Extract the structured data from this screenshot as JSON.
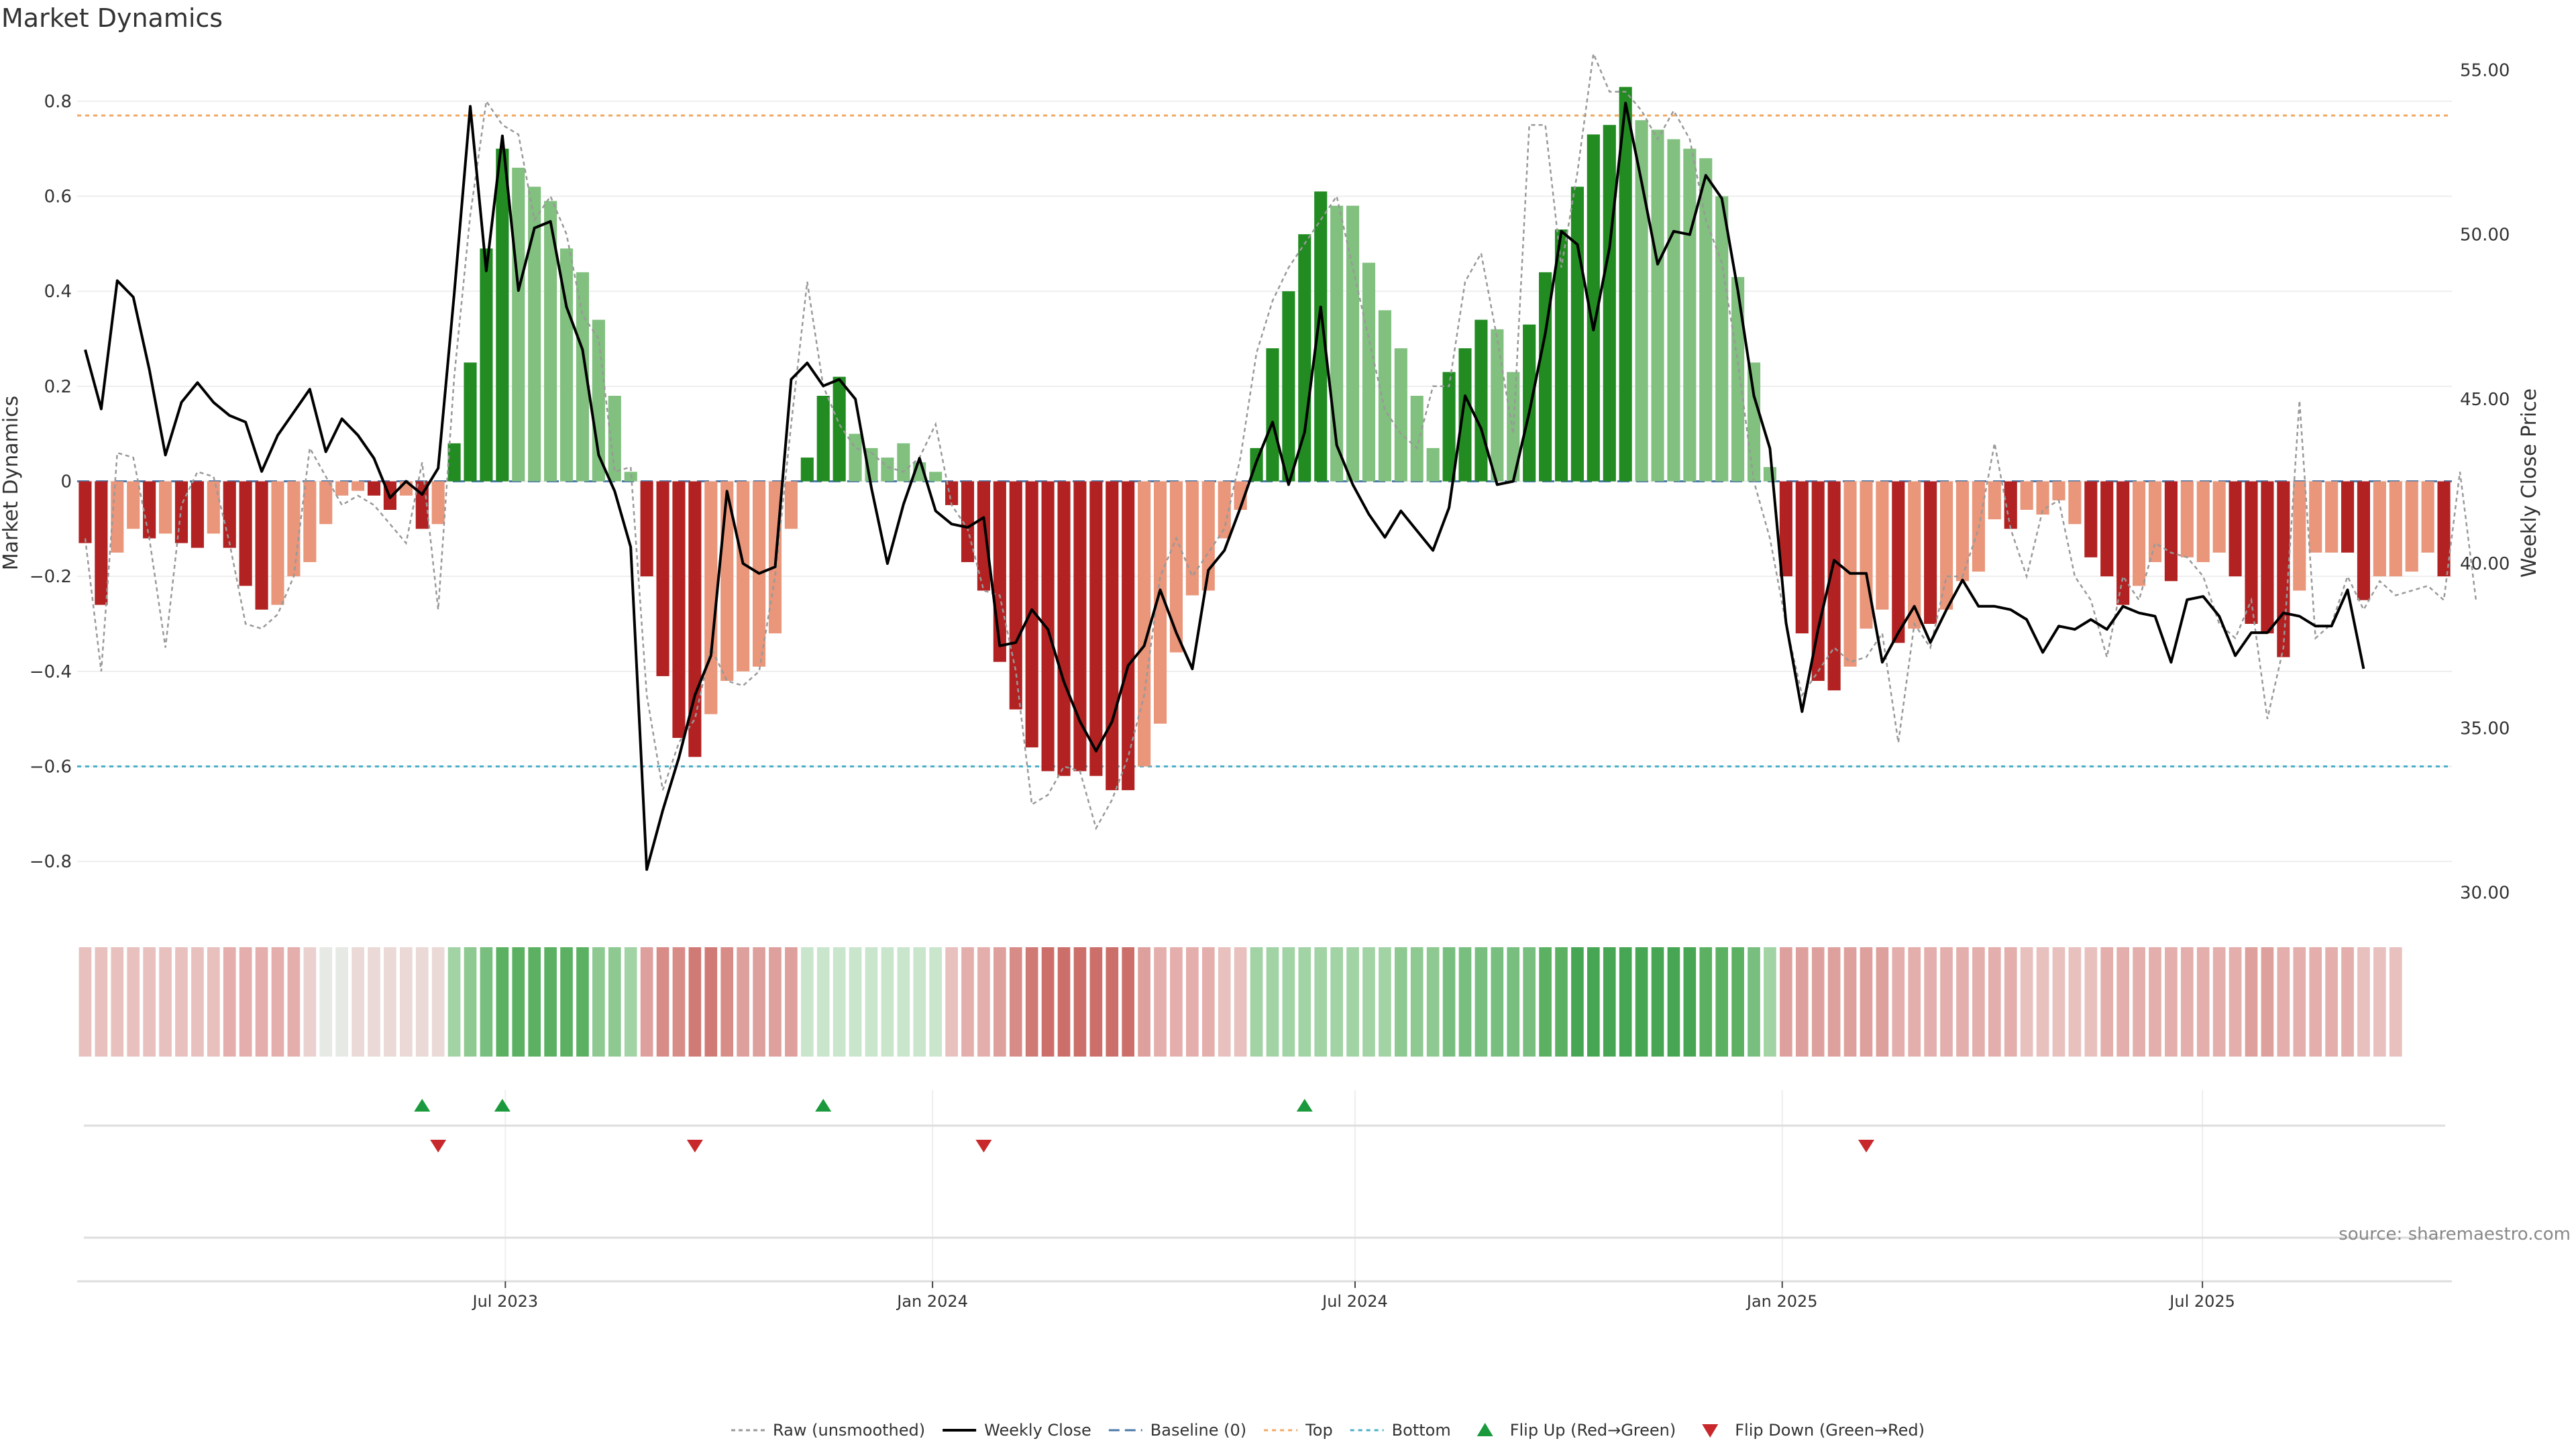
{
  "chart_data": {
    "type": "bar",
    "title": "Market Dynamics",
    "ylabel_left": "Market Dynamics",
    "ylabel_right": "Weekly Close Price",
    "ylim_left": [
      -0.9,
      0.9
    ],
    "ylim_right": [
      29.5,
      55.5
    ],
    "yticks_left": [
      0.8,
      0.6,
      0.4,
      0.2,
      0,
      -0.2,
      -0.4,
      -0.6,
      -0.8
    ],
    "yticks_left_labels": [
      "0.8",
      "0.6",
      "0.4",
      "0.2",
      "0",
      "−0.2",
      "−0.4",
      "−0.6",
      "−0.8"
    ],
    "yticks_right": [
      55,
      50,
      45,
      40,
      35,
      30
    ],
    "yticks_right_labels": [
      "55.00",
      "50.00",
      "45.00",
      "40.00",
      "35.00",
      "30.00"
    ],
    "x_start_date": "2023-01-01",
    "x_end_date": "2025-10-13",
    "x_ticks": [
      {
        "label": "Jul 2023",
        "date": "2023-07-01"
      },
      {
        "label": "Jan 2024",
        "date": "2024-01-01"
      },
      {
        "label": "Jul 2024",
        "date": "2024-07-01"
      },
      {
        "label": "Jan 2025",
        "date": "2025-01-01"
      },
      {
        "label": "Jul 2025",
        "date": "2025-07-01"
      }
    ],
    "top_level": 0.77,
    "bottom_level": -0.6,
    "baseline": 0,
    "bar_values": [
      -0.13,
      -0.26,
      -0.15,
      -0.1,
      -0.12,
      -0.11,
      -0.13,
      -0.14,
      -0.11,
      -0.14,
      -0.22,
      -0.27,
      -0.26,
      -0.2,
      -0.17,
      -0.09,
      -0.03,
      -0.02,
      -0.03,
      -0.06,
      -0.03,
      -0.1,
      -0.09,
      0.08,
      0.25,
      0.49,
      0.7,
      0.66,
      0.62,
      0.59,
      0.49,
      0.44,
      0.34,
      0.18,
      0.02,
      -0.2,
      -0.41,
      -0.54,
      -0.58,
      -0.49,
      -0.42,
      -0.4,
      -0.39,
      -0.32,
      -0.1,
      0.05,
      0.18,
      0.22,
      0.1,
      0.07,
      0.05,
      0.08,
      0.04,
      0.02,
      -0.05,
      -0.17,
      -0.23,
      -0.38,
      -0.48,
      -0.56,
      -0.61,
      -0.62,
      -0.61,
      -0.62,
      -0.65,
      -0.65,
      -0.6,
      -0.51,
      -0.36,
      -0.24,
      -0.23,
      -0.12,
      -0.06,
      0.07,
      0.28,
      0.4,
      0.52,
      0.61,
      0.58,
      0.58,
      0.46,
      0.36,
      0.28,
      0.18,
      0.07,
      0.23,
      0.28,
      0.34,
      0.32,
      0.23,
      0.33,
      0.44,
      0.53,
      0.62,
      0.73,
      0.75,
      0.83,
      0.76,
      0.74,
      0.72,
      0.7,
      0.68,
      0.6,
      0.43,
      0.25,
      0.03,
      -0.2,
      -0.32,
      -0.42,
      -0.44,
      -0.39,
      -0.31,
      -0.27,
      -0.34,
      -0.31,
      -0.3,
      -0.27,
      -0.21,
      -0.19,
      -0.08,
      -0.1,
      -0.06,
      -0.07,
      -0.04,
      -0.09,
      -0.16,
      -0.2,
      -0.26,
      -0.22,
      -0.17,
      -0.21,
      -0.16,
      -0.17,
      -0.15,
      -0.2,
      -0.3,
      -0.32,
      -0.37,
      -0.23,
      -0.15,
      -0.15,
      -0.15,
      -0.25,
      -0.2,
      -0.2,
      -0.19,
      -0.15,
      -0.2
    ],
    "bar_colors": [
      "#b22222",
      "#b22222",
      "#e9967a",
      "#e9967a",
      "#b22222",
      "#e9967a",
      "#b22222",
      "#b22222",
      "#e9967a",
      "#b22222",
      "#b22222",
      "#b22222",
      "#e9967a",
      "#e9967a",
      "#e9967a",
      "#e9967a",
      "#e9967a",
      "#e9967a",
      "#b22222",
      "#b22222",
      "#e9967a",
      "#b22222",
      "#e9967a",
      "#228b22",
      "#228b22",
      "#228b22",
      "#228b22",
      "#81c07f",
      "#81c07f",
      "#81c07f",
      "#81c07f",
      "#81c07f",
      "#81c07f",
      "#81c07f",
      "#81c07f",
      "#b22222",
      "#b22222",
      "#b22222",
      "#b22222",
      "#e9967a",
      "#e9967a",
      "#e9967a",
      "#e9967a",
      "#e9967a",
      "#e9967a",
      "#228b22",
      "#228b22",
      "#228b22",
      "#81c07f",
      "#81c07f",
      "#81c07f",
      "#81c07f",
      "#81c07f",
      "#81c07f",
      "#b22222",
      "#b22222",
      "#b22222",
      "#b22222",
      "#b22222",
      "#b22222",
      "#b22222",
      "#b22222",
      "#b22222",
      "#b22222",
      "#b22222",
      "#b22222",
      "#e9967a",
      "#e9967a",
      "#e9967a",
      "#e9967a",
      "#e9967a",
      "#e9967a",
      "#e9967a",
      "#228b22",
      "#228b22",
      "#228b22",
      "#228b22",
      "#228b22",
      "#81c07f",
      "#81c07f",
      "#81c07f",
      "#81c07f",
      "#81c07f",
      "#81c07f",
      "#81c07f",
      "#228b22",
      "#228b22",
      "#228b22",
      "#81c07f",
      "#81c07f",
      "#228b22",
      "#228b22",
      "#228b22",
      "#228b22",
      "#228b22",
      "#228b22",
      "#228b22",
      "#81c07f",
      "#81c07f",
      "#81c07f",
      "#81c07f",
      "#81c07f",
      "#81c07f",
      "#81c07f",
      "#81c07f",
      "#81c07f",
      "#b22222",
      "#b22222",
      "#b22222",
      "#b22222",
      "#e9967a",
      "#e9967a",
      "#e9967a",
      "#b22222",
      "#e9967a",
      "#b22222",
      "#e9967a",
      "#e9967a",
      "#e9967a",
      "#e9967a",
      "#b22222",
      "#e9967a",
      "#e9967a",
      "#e9967a",
      "#e9967a",
      "#b22222",
      "#b22222",
      "#b22222",
      "#e9967a",
      "#e9967a",
      "#b22222",
      "#e9967a",
      "#e9967a",
      "#e9967a",
      "#b22222",
      "#b22222",
      "#b22222",
      "#b22222",
      "#e9967a",
      "#e9967a",
      "#e9967a",
      "#b22222",
      "#b22222",
      "#e9967a",
      "#e9967a",
      "#e9967a",
      "#e9967a",
      "#b22222"
    ],
    "raw_values": [
      -0.12,
      -0.4,
      0.06,
      0.05,
      -0.12,
      -0.35,
      -0.05,
      0.02,
      0.01,
      -0.13,
      -0.3,
      -0.31,
      -0.28,
      -0.2,
      0.07,
      0.01,
      -0.05,
      -0.03,
      -0.05,
      -0.09,
      -0.13,
      0.04,
      -0.27,
      0.22,
      0.56,
      0.8,
      0.75,
      0.73,
      0.55,
      0.6,
      0.52,
      0.35,
      0.3,
      0.02,
      0.03,
      -0.45,
      -0.65,
      -0.55,
      -0.5,
      -0.35,
      -0.42,
      -0.43,
      -0.4,
      -0.2,
      0.12,
      0.42,
      0.2,
      0.12,
      0.07,
      0.06,
      0.03,
      0.02,
      0.05,
      0.12,
      -0.05,
      -0.1,
      -0.23,
      -0.24,
      -0.4,
      -0.68,
      -0.66,
      -0.6,
      -0.61,
      -0.73,
      -0.67,
      -0.58,
      -0.45,
      -0.2,
      -0.12,
      -0.2,
      -0.15,
      -0.1,
      0.05,
      0.27,
      0.38,
      0.45,
      0.5,
      0.55,
      0.6,
      0.45,
      0.3,
      0.15,
      0.1,
      0.07,
      0.2,
      0.2,
      0.42,
      0.48,
      0.3,
      0.1,
      0.75,
      0.75,
      0.45,
      0.65,
      0.9,
      0.82,
      0.82,
      0.78,
      0.72,
      0.78,
      0.72,
      0.55,
      0.46,
      0.25,
      0.0,
      -0.12,
      -0.3,
      -0.45,
      -0.4,
      -0.35,
      -0.38,
      -0.37,
      -0.32,
      -0.55,
      -0.3,
      -0.35,
      -0.2,
      -0.2,
      -0.1,
      0.08,
      -0.1,
      -0.2,
      -0.06,
      -0.04,
      -0.2,
      -0.25,
      -0.37,
      -0.2,
      -0.25,
      -0.13,
      -0.15,
      -0.16,
      -0.2,
      -0.3,
      -0.33,
      -0.25,
      -0.5,
      -0.35,
      0.17,
      -0.33,
      -0.3,
      -0.2,
      -0.27,
      -0.21,
      -0.24,
      -0.23,
      -0.22,
      -0.25,
      0.02,
      -0.25
    ],
    "close_values": [
      46.5,
      44.7,
      48.6,
      48.1,
      45.9,
      43.3,
      44.9,
      45.5,
      44.9,
      44.5,
      44.3,
      42.8,
      43.9,
      44.6,
      45.3,
      43.4,
      44.4,
      43.9,
      43.2,
      42.0,
      42.5,
      42.1,
      42.9,
      48.2,
      53.9,
      48.9,
      53.0,
      48.3,
      50.2,
      50.4,
      47.8,
      46.5,
      43.3,
      42.2,
      40.5,
      30.7,
      32.5,
      34.1,
      36.0,
      37.2,
      42.2,
      40.0,
      39.7,
      39.9,
      45.6,
      46.1,
      45.4,
      45.6,
      45.0,
      42.3,
      40.0,
      41.8,
      43.2,
      41.6,
      41.2,
      41.1,
      41.4,
      37.5,
      37.6,
      38.6,
      38.0,
      36.4,
      35.2,
      34.3,
      35.2,
      36.9,
      37.5,
      39.2,
      37.9,
      36.8,
      39.8,
      40.4,
      41.7,
      43.1,
      44.3,
      42.4,
      44.0,
      47.8,
      43.6,
      42.4,
      41.5,
      40.8,
      41.6,
      41.0,
      40.4,
      41.7,
      45.1,
      44.1,
      42.4,
      42.5,
      44.6,
      47.0,
      50.1,
      49.7,
      47.1,
      49.6,
      54.0,
      51.6,
      49.1,
      50.1,
      50.0,
      51.8,
      51.1,
      48.3,
      45.1,
      43.5,
      38.2,
      35.5,
      38.0,
      40.1,
      39.7,
      39.7,
      37.0,
      37.9,
      38.7,
      37.6,
      38.6,
      39.5,
      38.7,
      38.7,
      38.6,
      38.3,
      37.3,
      38.1,
      38.0,
      38.3,
      38.0,
      38.7,
      38.5,
      38.4,
      37.0,
      38.9,
      39.0,
      38.4,
      37.2,
      37.9,
      37.9,
      38.5,
      38.4,
      38.1,
      38.1,
      39.2,
      36.8
    ],
    "heatmap_colors": [
      "#e8c0bd",
      "#e8c0bd",
      "#e8c0bd",
      "#e8c0bd",
      "#e8c0bd",
      "#e8c0bd",
      "#e8c0bd",
      "#e8c0bd",
      "#e8c0bd",
      "#e3aeab",
      "#e3aeab",
      "#e3aeab",
      "#e3aeab",
      "#e3aeab",
      "#ead1cf",
      "#e6e9e4",
      "#e6e9e4",
      "#ead9d6",
      "#ead9d6",
      "#ead9d6",
      "#ead9d6",
      "#ead9d6",
      "#ead9d6",
      "#a2d3a4",
      "#8dc991",
      "#78be7f",
      "#5bb062",
      "#5bb062",
      "#5bb062",
      "#5bb062",
      "#5bb062",
      "#5bb062",
      "#8dc991",
      "#8dc991",
      "#a2d3a4",
      "#dea09c",
      "#d88c88",
      "#d88c88",
      "#d07a76",
      "#d07a76",
      "#d88c88",
      "#dea09c",
      "#dea09c",
      "#dea09c",
      "#dea09c",
      "#c9e6cd",
      "#c9e6cd",
      "#c9e6cd",
      "#c9e6cd",
      "#c9e6cd",
      "#c9e6cd",
      "#c9e6cd",
      "#c9e6cd",
      "#c9e6cd",
      "#e8c0bd",
      "#e3aeab",
      "#e3aeab",
      "#dea09c",
      "#d88c88",
      "#d07a76",
      "#cc6e69",
      "#cc6e69",
      "#cc6e69",
      "#cc6e69",
      "#cc6e69",
      "#cc6e69",
      "#dea09c",
      "#e3aeab",
      "#e3aeab",
      "#e3aeab",
      "#e3aeab",
      "#e8c0bd",
      "#e8c0bd",
      "#a2d3a4",
      "#a2d3a4",
      "#a2d3a4",
      "#a2d3a4",
      "#a2d3a4",
      "#a2d3a4",
      "#a2d3a4",
      "#a2d3a4",
      "#a2d3a4",
      "#8dc991",
      "#8dc991",
      "#8dc991",
      "#78be7f",
      "#78be7f",
      "#78be7f",
      "#78be7f",
      "#78be7f",
      "#78be7f",
      "#5bb062",
      "#5bb062",
      "#47a653",
      "#47a653",
      "#47a653",
      "#47a653",
      "#47a653",
      "#47a653",
      "#47a653",
      "#47a653",
      "#5bb062",
      "#5bb062",
      "#5bb062",
      "#78be7f",
      "#a2d3a4",
      "#dea09c",
      "#dea09c",
      "#dea09c",
      "#dea09c",
      "#dea09c",
      "#dea09c",
      "#dea09c",
      "#e3aeab",
      "#e3aeab",
      "#e3aeab",
      "#e3aeab",
      "#e3aeab",
      "#e3aeab",
      "#e3aeab",
      "#e3aeab",
      "#e8c0bd",
      "#e8c0bd",
      "#e8c0bd",
      "#e8c0bd",
      "#e8c0bd",
      "#e3aeab",
      "#e3aeab",
      "#e3aeab",
      "#e3aeab",
      "#e3aeab",
      "#e3aeab",
      "#e3aeab",
      "#e3aeab",
      "#e3aeab",
      "#dea09c",
      "#dea09c",
      "#e3aeab",
      "#e3aeab",
      "#e3aeab",
      "#e3aeab",
      "#e3aeab",
      "#e8c0bd",
      "#e8c0bd",
      "#e8c0bd"
    ],
    "flip_up_weeks": [
      21,
      26,
      46,
      76
    ],
    "flip_down_weeks": [
      22,
      38,
      56,
      111
    ],
    "colors": {
      "strong_green": "#228b22",
      "light_green": "#81c07f",
      "strong_red": "#b22222",
      "light_red": "#e9967a",
      "close_line": "#000000",
      "raw_line": "#999999",
      "baseline": "#4a78a8",
      "top_line": "#f0a860",
      "bottom_line": "#4ab0c8",
      "flip_up": "#1a9a3c",
      "flip_down": "#c8282c"
    },
    "legend": [
      {
        "key": "raw",
        "label": "Raw (unsmoothed)"
      },
      {
        "key": "close",
        "label": "Weekly Close"
      },
      {
        "key": "baseline",
        "label": "Baseline (0)"
      },
      {
        "key": "top",
        "label": "Top"
      },
      {
        "key": "bottom",
        "label": "Bottom"
      },
      {
        "key": "flipup",
        "label": "Flip Up (Red→Green)"
      },
      {
        "key": "flipdown",
        "label": "Flip Down (Green→Red)"
      }
    ],
    "legend_placement": "bottom-center",
    "source": "source: sharemaestro.com"
  }
}
